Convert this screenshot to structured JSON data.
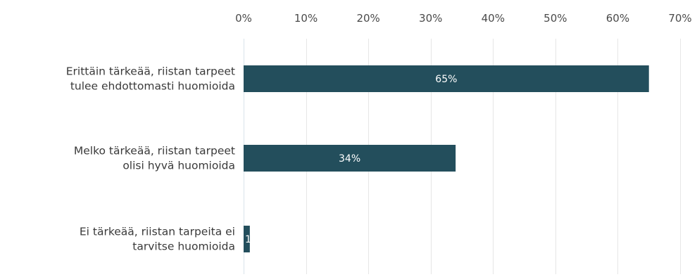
{
  "chart_data": {
    "type": "bar",
    "orientation": "horizontal",
    "categories": [
      [
        "Erittäin tärkeää, riistan tarpeet",
        "tulee ehdottomasti huomioida"
      ],
      [
        "Melko tärkeää, riistan tarpeet",
        "olisi hyvä huomioida"
      ],
      [
        "Ei tärkeää, riistan tarpeita ei",
        "tarvitse huomioida"
      ]
    ],
    "values": [
      65,
      34,
      1
    ],
    "data_labels": [
      "65%",
      "34%",
      "1"
    ],
    "xlim": [
      0,
      70
    ],
    "xticks": [
      0,
      10,
      20,
      30,
      40,
      50,
      60,
      70
    ],
    "xtick_labels": [
      "0%",
      "10%",
      "20%",
      "30%",
      "40%",
      "50%",
      "60%",
      "70%"
    ],
    "x_axis_position": "top",
    "grid": "vertical",
    "bar_color": "#234e5c",
    "data_label_color": "#ffffff",
    "grid_color": "#e6e6e6"
  }
}
